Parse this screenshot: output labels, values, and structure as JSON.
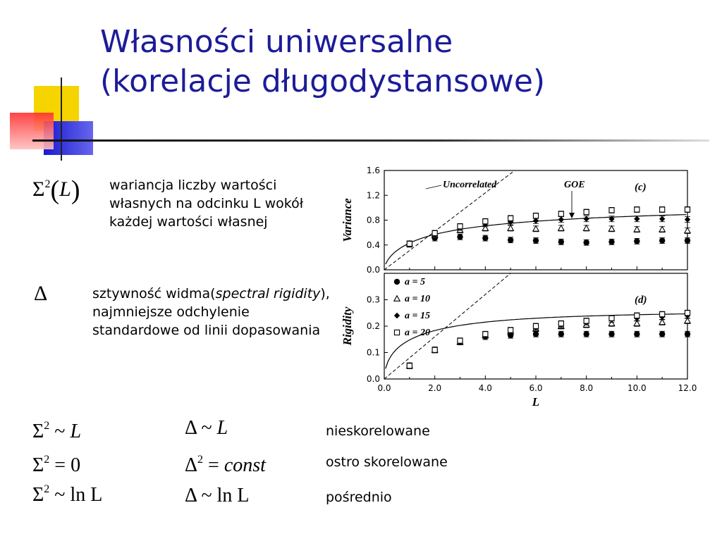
{
  "slide": {
    "title_line1": "Własności uniwersalne",
    "title_line2": "(korelacje długodystansowe)",
    "colors": {
      "title": "#1c1c99",
      "deco_yellow": "#f5d400",
      "deco_blue": "#2222cc",
      "deco_red": "#ff4a4a"
    }
  },
  "definitions": [
    {
      "symbol": "Σ²(L)",
      "text": "wariancja liczby wartości własnych na odcinku L wokół każdej wartości własnej"
    },
    {
      "symbol": "Δ",
      "text_before": "sztywność widma(",
      "text_italic": "spectral rigidity",
      "text_after": "), najmniejsze odchylenie standardowe od linii dopasowania"
    }
  ],
  "relations": [
    {
      "sigma_rel": "~",
      "sigma_rhs": "L",
      "delta_lhs": "Δ",
      "delta_rel": "~",
      "delta_rhs": "L",
      "label": "nieskorelowane"
    },
    {
      "sigma_rel": "=",
      "sigma_rhs": "0",
      "delta_lhs": "Δ²",
      "delta_rel": "=",
      "delta_rhs": "const",
      "label": "ostro skorelowane"
    },
    {
      "sigma_rel": "~",
      "sigma_rhs": "ln L",
      "delta_lhs": "Δ",
      "delta_rel": "~",
      "delta_rhs": "ln L",
      "label": "pośrednio"
    }
  ],
  "chart_data": [
    {
      "type": "scatter",
      "panel_label": "(c)",
      "ylabel": "Variance",
      "ylim": [
        0,
        1.6
      ],
      "yticks": [
        "0.0",
        "0.4",
        "0.8",
        "1.2",
        "1.6"
      ],
      "xlim": [
        0,
        12
      ],
      "annotations": [
        "Uncorrelated",
        "GOE"
      ],
      "x": [
        1,
        2,
        3,
        4,
        5,
        6,
        7,
        8,
        9,
        10,
        11,
        12
      ],
      "series": [
        {
          "marker": "circle-filled",
          "values": [
            0.41,
            0.51,
            0.53,
            0.51,
            0.48,
            0.47,
            0.45,
            0.44,
            0.45,
            0.46,
            0.47,
            0.47
          ]
        },
        {
          "marker": "triangle-open",
          "values": [
            0.42,
            0.56,
            0.64,
            0.67,
            0.67,
            0.66,
            0.67,
            0.67,
            0.66,
            0.65,
            0.65,
            0.63
          ]
        },
        {
          "marker": "diamond-filled",
          "values": [
            0.42,
            0.58,
            0.68,
            0.74,
            0.77,
            0.79,
            0.81,
            0.82,
            0.82,
            0.82,
            0.82,
            0.81
          ]
        },
        {
          "marker": "square-open",
          "values": [
            0.42,
            0.59,
            0.7,
            0.78,
            0.83,
            0.87,
            0.9,
            0.93,
            0.96,
            0.97,
            0.97,
            0.97
          ]
        }
      ]
    },
    {
      "type": "scatter",
      "panel_label": "(d)",
      "ylabel": "Rigidity",
      "xlabel": "L",
      "ylim": [
        0,
        0.4
      ],
      "yticks": [
        "0.0",
        "0.1",
        "0.2",
        "0.3"
      ],
      "xlim": [
        0,
        12
      ],
      "xticks": [
        "0.0",
        "2.0",
        "4.0",
        "6.0",
        "8.0",
        "10.0",
        "12.0"
      ],
      "legend": [
        "a = 5",
        "a = 10",
        "a = 15",
        "a = 20"
      ],
      "legend_position": "top-left",
      "x": [
        1,
        2,
        3,
        4,
        5,
        6,
        7,
        8,
        9,
        10,
        11,
        12
      ],
      "series": [
        {
          "name": "a = 5",
          "marker": "circle-filled",
          "values": [
            0.05,
            0.11,
            0.14,
            0.16,
            0.165,
            0.17,
            0.17,
            0.17,
            0.17,
            0.17,
            0.17,
            0.17
          ]
        },
        {
          "name": "a = 10",
          "marker": "triangle-open",
          "values": [
            0.05,
            0.11,
            0.14,
            0.165,
            0.18,
            0.19,
            0.2,
            0.205,
            0.21,
            0.21,
            0.215,
            0.22
          ]
        },
        {
          "name": "a = 15",
          "marker": "diamond-filled",
          "values": [
            0.05,
            0.11,
            0.14,
            0.165,
            0.18,
            0.195,
            0.205,
            0.215,
            0.225,
            0.23,
            0.235,
            0.24
          ]
        },
        {
          "name": "a = 20",
          "marker": "square-open",
          "values": [
            0.05,
            0.11,
            0.145,
            0.17,
            0.185,
            0.2,
            0.21,
            0.22,
            0.23,
            0.24,
            0.245,
            0.25
          ]
        }
      ]
    }
  ]
}
